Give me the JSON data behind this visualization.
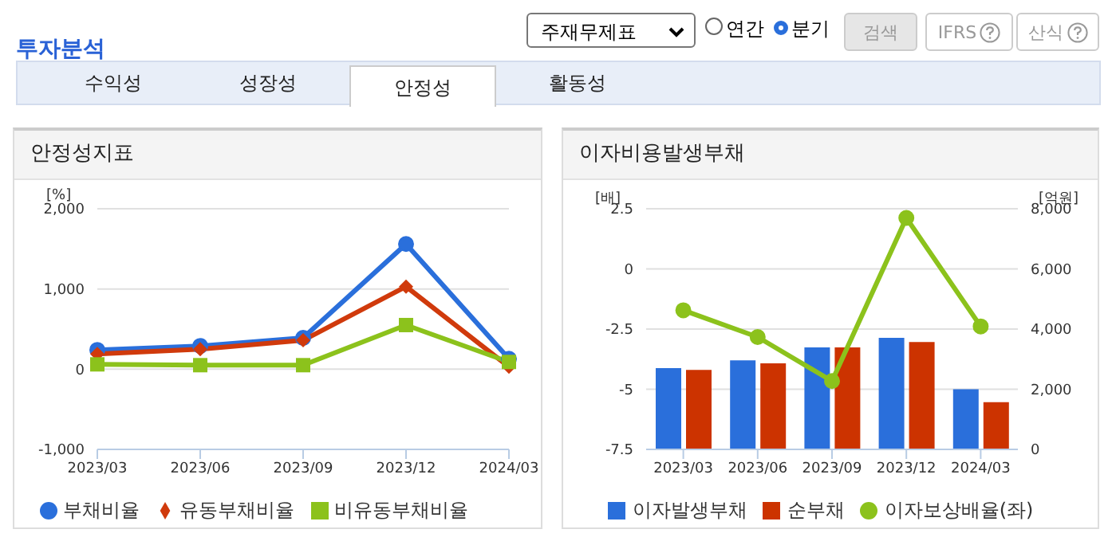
{
  "chart_data": [
    {
      "type": "line",
      "title": "안정성지표",
      "ylabel": "[%]",
      "annotations": [
        "투자분석",
        "주재무제표",
        "연간",
        "분기",
        "검색",
        "IFRS",
        "산식",
        "수익성",
        "성장성",
        "안정성",
        "활동성"
      ],
      "categories": [
        "2023/03",
        "2023/06",
        "2023/09",
        "2023/12",
        "2024/03"
      ],
      "series": [
        {
          "name": "부채비율",
          "color": "#2a6fdb",
          "marker": "circle",
          "values": [
            240,
            290,
            390,
            1560,
            130
          ]
        },
        {
          "name": "유동부채비율",
          "color": "#d03a0c",
          "marker": "diamond",
          "values": [
            190,
            250,
            360,
            1030,
            30
          ]
        },
        {
          "name": "비유동부채비율",
          "color": "#8cc21c",
          "marker": "square",
          "values": [
            60,
            50,
            50,
            550,
            90
          ]
        }
      ],
      "ylim": [
        -1000,
        2000
      ],
      "yticks": [
        {
          "value": -1000,
          "label": "-1,000"
        },
        0,
        {
          "value": 1000,
          "label": "1,000"
        },
        {
          "value": 2000,
          "label": "2,000"
        }
      ],
      "grid": "y",
      "legend": "bottom"
    },
    {
      "type": "bar",
      "title": "이자비용발생부채",
      "ylabel": "[배]",
      "y2label": "[억원]",
      "categories": [
        "2023/03",
        "2023/06",
        "2023/09",
        "2023/12",
        "2024/03"
      ],
      "series": [
        {
          "name": "이자발생부채",
          "color": "#2a6fdb",
          "axis": "y2",
          "values": [
            2700,
            2960,
            3390,
            3710,
            2000
          ]
        },
        {
          "name": "순부채",
          "color": "#cc3300",
          "axis": "y2",
          "values": [
            2640,
            2860,
            3390,
            3570,
            1570
          ]
        },
        {
          "name": "이자보상배율(좌)",
          "type": "line",
          "marker": "circle",
          "color": "#8cc21c",
          "values": [
            -1.72,
            -2.83,
            -4.66,
            2.12,
            -2.39
          ]
        }
      ],
      "ylim": [
        -7.5,
        2.5
      ],
      "yticks": [
        -7.5,
        -5,
        -2.5,
        0,
        2.5
      ],
      "y2lim": [
        0,
        8000
      ],
      "y2ticks": [
        0,
        {
          "value": 2000,
          "label": "2,000"
        },
        {
          "value": 4000,
          "label": "4,000"
        },
        {
          "value": 6000,
          "label": "6,000"
        },
        {
          "value": 8000,
          "label": "8,000"
        }
      ],
      "grid": "y",
      "legend": "bottom"
    }
  ]
}
